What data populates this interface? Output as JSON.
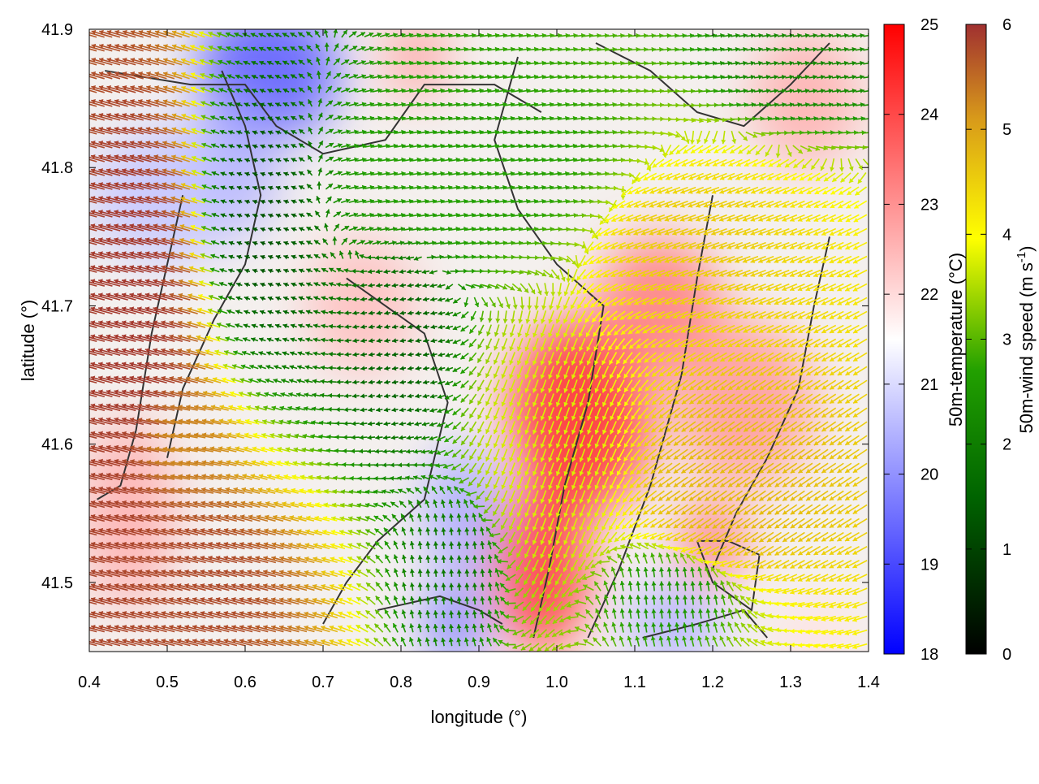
{
  "chart_data": {
    "type": "heatmap",
    "title": "",
    "xlabel": "longitude (°)",
    "ylabel": "latitude (°)",
    "xlim": [
      0.4,
      1.4
    ],
    "ylim": [
      41.45,
      41.9
    ],
    "xticks": [
      {
        "value": 0.4,
        "label": "0.4"
      },
      {
        "value": 0.5,
        "label": "0.5"
      },
      {
        "value": 0.6,
        "label": "0.6"
      },
      {
        "value": 0.7,
        "label": "0.7"
      },
      {
        "value": 0.8,
        "label": "0.8"
      },
      {
        "value": 0.9,
        "label": "0.9"
      },
      {
        "value": 1.0,
        "label": "1.0"
      },
      {
        "value": 1.1,
        "label": "1.1"
      },
      {
        "value": 1.2,
        "label": "1.2"
      },
      {
        "value": 1.3,
        "label": "1.3"
      },
      {
        "value": 1.4,
        "label": "1.4"
      }
    ],
    "yticks": [
      {
        "value": 41.5,
        "label": "41.5"
      },
      {
        "value": 41.6,
        "label": "41.6"
      },
      {
        "value": 41.7,
        "label": "41.7"
      },
      {
        "value": 41.8,
        "label": "41.8"
      },
      {
        "value": 41.9,
        "label": "41.9"
      }
    ],
    "temperature_colorbar": {
      "label": "50m-temperature (°C)",
      "range": [
        18,
        25
      ],
      "ticks": [
        {
          "value": 18,
          "label": "18"
        },
        {
          "value": 19,
          "label": "19"
        },
        {
          "value": 20,
          "label": "20"
        },
        {
          "value": 21,
          "label": "21"
        },
        {
          "value": 22,
          "label": "22"
        },
        {
          "value": 23,
          "label": "23"
        },
        {
          "value": 24,
          "label": "24"
        },
        {
          "value": 25,
          "label": "25"
        }
      ],
      "colors": [
        "#0000ff",
        "#ffffff",
        "#ff0000"
      ]
    },
    "windspeed_colorbar": {
      "label_main": "50m-wind speed (m s",
      "label_sup": "-1",
      "label_end": ")",
      "range": [
        0,
        6
      ],
      "ticks": [
        {
          "value": 0,
          "label": "0"
        },
        {
          "value": 1,
          "label": "1"
        },
        {
          "value": 2,
          "label": "2"
        },
        {
          "value": 3,
          "label": "3"
        },
        {
          "value": 4,
          "label": "4"
        },
        {
          "value": 5,
          "label": "5"
        },
        {
          "value": 6,
          "label": "6"
        }
      ],
      "colors": [
        "#000000",
        "#006400",
        "#22a000",
        "#ffff00",
        "#d89a1a",
        "#a03030"
      ]
    },
    "temperature_blobs": [
      {
        "lon": 0.63,
        "lat": 41.87,
        "rlon": 0.09,
        "rlat": 0.05,
        "t": 19.2
      },
      {
        "lon": 0.58,
        "lat": 41.8,
        "rlon": 0.06,
        "rlat": 0.05,
        "t": 20.3
      },
      {
        "lon": 0.5,
        "lat": 41.78,
        "rlon": 0.1,
        "rlat": 0.05,
        "t": 20.7
      },
      {
        "lon": 0.82,
        "lat": 41.88,
        "rlon": 0.04,
        "rlat": 0.03,
        "t": 22.8
      },
      {
        "lon": 0.75,
        "lat": 41.7,
        "rlon": 0.07,
        "rlat": 0.05,
        "t": 22.4
      },
      {
        "lon": 1.03,
        "lat": 41.62,
        "rlon": 0.09,
        "rlat": 0.07,
        "t": 24.4
      },
      {
        "lon": 0.98,
        "lat": 41.51,
        "rlon": 0.06,
        "rlat": 0.06,
        "t": 24.3
      },
      {
        "lon": 0.88,
        "lat": 41.55,
        "rlon": 0.05,
        "rlat": 0.05,
        "t": 20.3
      },
      {
        "lon": 0.87,
        "lat": 41.47,
        "rlon": 0.04,
        "rlat": 0.03,
        "t": 19.7
      },
      {
        "lon": 1.13,
        "lat": 41.7,
        "rlon": 0.08,
        "rlat": 0.05,
        "t": 23.3
      },
      {
        "lon": 1.24,
        "lat": 41.63,
        "rlon": 0.09,
        "rlat": 0.06,
        "t": 22.9
      },
      {
        "lon": 1.32,
        "lat": 41.85,
        "rlon": 0.07,
        "rlat": 0.05,
        "t": 22.6
      },
      {
        "lon": 1.15,
        "lat": 41.47,
        "rlon": 0.06,
        "rlat": 0.03,
        "t": 20.4
      },
      {
        "lon": 1.33,
        "lat": 41.46,
        "rlon": 0.05,
        "rlat": 0.03,
        "t": 21.9
      },
      {
        "lon": 0.45,
        "lat": 41.55,
        "rlon": 0.06,
        "rlat": 0.07,
        "t": 22.6
      },
      {
        "lon": 1.2,
        "lat": 41.53,
        "rlon": 0.04,
        "rlat": 0.03,
        "t": 23.4
      }
    ],
    "wind_regions": [
      {
        "lon": 0.47,
        "lat": 41.7,
        "rlon": 0.1,
        "rlat": 0.22,
        "speed": 5.9,
        "dir": 165
      },
      {
        "lon": 0.55,
        "lat": 41.5,
        "rlon": 0.1,
        "rlat": 0.06,
        "speed": 5.7,
        "dir": 165
      },
      {
        "lon": 0.52,
        "lat": 41.6,
        "rlon": 0.07,
        "rlat": 0.05,
        "speed": 5.0,
        "dir": 170
      },
      {
        "lon": 0.62,
        "lat": 41.77,
        "rlon": 0.09,
        "rlat": 0.12,
        "speed": 1.0,
        "dir": 160
      },
      {
        "lon": 0.8,
        "lat": 41.68,
        "rlon": 0.07,
        "rlat": 0.07,
        "speed": 1.2,
        "dir": 190
      },
      {
        "lon": 0.87,
        "lat": 41.51,
        "rlon": 0.06,
        "rlat": 0.05,
        "speed": 1.6,
        "dir": 95
      },
      {
        "lon": 0.9,
        "lat": 41.8,
        "rlon": 0.25,
        "rlat": 0.08,
        "speed": 2.4,
        "dir": 10
      },
      {
        "lon": 1.0,
        "lat": 41.6,
        "rlon": 0.1,
        "rlat": 0.1,
        "speed": 3.4,
        "dir": 250
      },
      {
        "lon": 1.17,
        "lat": 41.75,
        "rlon": 0.15,
        "rlat": 0.07,
        "speed": 4.2,
        "dir": 200
      },
      {
        "lon": 1.22,
        "lat": 41.57,
        "rlon": 0.12,
        "rlat": 0.08,
        "speed": 4.4,
        "dir": 215
      },
      {
        "lon": 1.3,
        "lat": 41.87,
        "rlon": 0.1,
        "rlat": 0.04,
        "speed": 1.9,
        "dir": 10
      },
      {
        "lon": 1.15,
        "lat": 41.49,
        "rlon": 0.1,
        "rlat": 0.04,
        "speed": 2.2,
        "dir": 95
      }
    ],
    "contours": [
      [
        [
          0.42,
          41.87
        ],
        [
          0.53,
          41.86
        ],
        [
          0.6,
          41.86
        ],
        [
          0.64,
          41.83
        ],
        [
          0.7,
          41.81
        ],
        [
          0.78,
          41.82
        ],
        [
          0.83,
          41.86
        ],
        [
          0.92,
          41.86
        ],
        [
          0.98,
          41.84
        ]
      ],
      [
        [
          0.52,
          41.78
        ],
        [
          0.5,
          41.73
        ],
        [
          0.48,
          41.68
        ],
        [
          0.46,
          41.61
        ],
        [
          0.44,
          41.57
        ],
        [
          0.41,
          41.56
        ]
      ],
      [
        [
          0.57,
          41.87
        ],
        [
          0.6,
          41.83
        ],
        [
          0.62,
          41.78
        ],
        [
          0.6,
          41.73
        ],
        [
          0.56,
          41.69
        ],
        [
          0.52,
          41.64
        ],
        [
          0.5,
          41.59
        ]
      ],
      [
        [
          0.73,
          41.72
        ],
        [
          0.78,
          41.7
        ],
        [
          0.83,
          41.68
        ],
        [
          0.86,
          41.63
        ],
        [
          0.83,
          41.56
        ],
        [
          0.77,
          41.53
        ],
        [
          0.73,
          41.5
        ],
        [
          0.7,
          41.47
        ]
      ],
      [
        [
          0.95,
          41.88
        ],
        [
          0.92,
          41.82
        ],
        [
          0.95,
          41.77
        ],
        [
          1.0,
          41.73
        ],
        [
          1.06,
          41.7
        ],
        [
          1.04,
          41.63
        ],
        [
          1.01,
          41.57
        ],
        [
          0.99,
          41.51
        ],
        [
          0.97,
          41.46
        ]
      ],
      [
        [
          1.05,
          41.89
        ],
        [
          1.12,
          41.87
        ],
        [
          1.18,
          41.84
        ],
        [
          1.24,
          41.83
        ],
        [
          1.3,
          41.86
        ],
        [
          1.35,
          41.89
        ]
      ],
      [
        [
          1.2,
          41.78
        ],
        [
          1.18,
          41.72
        ],
        [
          1.16,
          41.65
        ],
        [
          1.12,
          41.57
        ],
        [
          1.08,
          41.51
        ],
        [
          1.04,
          41.46
        ]
      ],
      [
        [
          1.35,
          41.75
        ],
        [
          1.33,
          41.7
        ],
        [
          1.31,
          41.64
        ],
        [
          1.27,
          41.59
        ],
        [
          1.23,
          41.55
        ],
        [
          1.2,
          41.51
        ]
      ],
      [
        [
          1.18,
          41.53
        ],
        [
          1.22,
          41.53
        ],
        [
          1.26,
          41.52
        ],
        [
          1.25,
          41.48
        ],
        [
          1.2,
          41.5
        ],
        [
          1.18,
          41.53
        ]
      ],
      [
        [
          0.77,
          41.48
        ],
        [
          0.85,
          41.49
        ],
        [
          0.9,
          41.48
        ],
        [
          0.93,
          41.47
        ]
      ],
      [
        [
          1.11,
          41.46
        ],
        [
          1.18,
          41.47
        ],
        [
          1.24,
          41.48
        ],
        [
          1.27,
          41.46
        ]
      ]
    ]
  }
}
